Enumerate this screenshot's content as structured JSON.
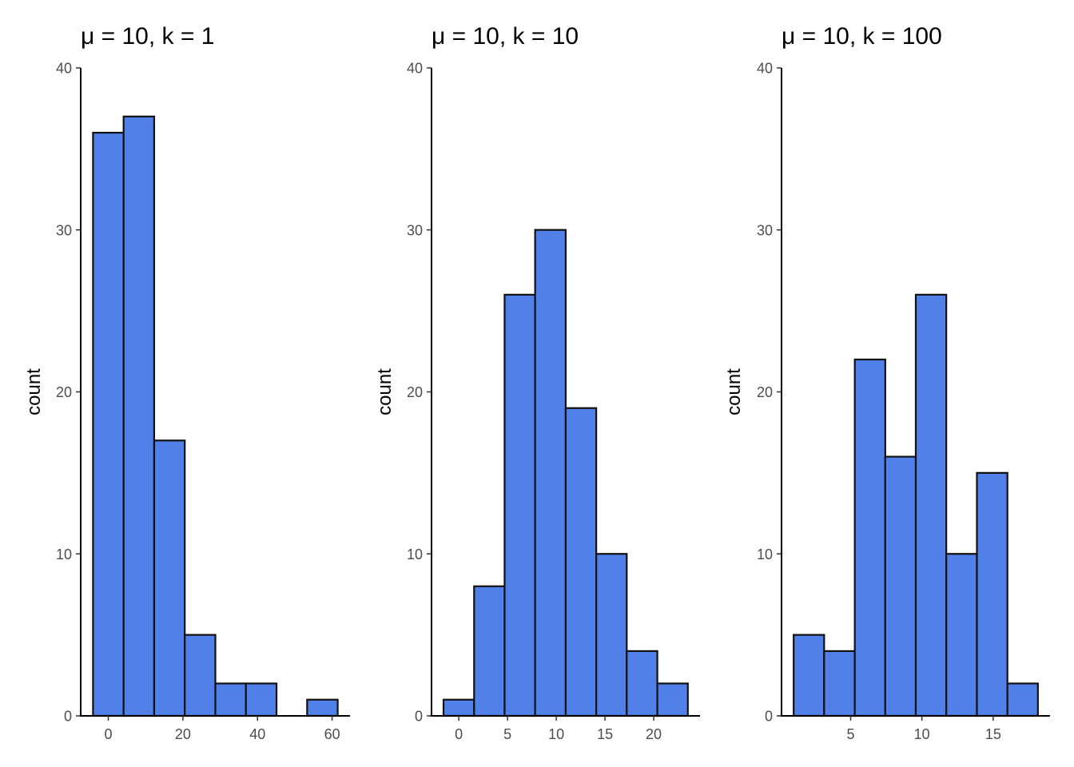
{
  "chart_data": [
    {
      "type": "bar",
      "title": "μ = 10, k = 1",
      "xlabel": "",
      "ylabel": "count",
      "bin_width": 8.2,
      "bins": [
        {
          "x0": -4.1,
          "x1": 4.1,
          "count": 36
        },
        {
          "x0": 4.1,
          "x1": 12.3,
          "count": 37
        },
        {
          "x0": 12.3,
          "x1": 20.5,
          "count": 17
        },
        {
          "x0": 20.5,
          "x1": 28.7,
          "count": 5
        },
        {
          "x0": 28.7,
          "x1": 36.9,
          "count": 2
        },
        {
          "x0": 36.9,
          "x1": 45.1,
          "count": 2
        },
        {
          "x0": 45.1,
          "x1": 53.3,
          "count": 0
        },
        {
          "x0": 53.3,
          "x1": 61.5,
          "count": 1
        }
      ],
      "xlim": [
        -7.4,
        64.8
      ],
      "ylim": [
        0,
        40
      ],
      "xticks": [
        0,
        20,
        40,
        60
      ],
      "yticks": [
        0,
        10,
        20,
        30,
        40
      ],
      "grid": false
    },
    {
      "type": "bar",
      "title": "μ = 10, k = 10",
      "xlabel": "",
      "ylabel": "count",
      "bin_width": 3.13,
      "bins": [
        {
          "x0": -1.57,
          "x1": 1.57,
          "count": 1
        },
        {
          "x0": 1.57,
          "x1": 4.7,
          "count": 8
        },
        {
          "x0": 4.7,
          "x1": 7.83,
          "count": 26
        },
        {
          "x0": 7.83,
          "x1": 10.97,
          "count": 30
        },
        {
          "x0": 10.97,
          "x1": 14.1,
          "count": 19
        },
        {
          "x0": 14.1,
          "x1": 17.23,
          "count": 10
        },
        {
          "x0": 17.23,
          "x1": 20.37,
          "count": 4
        },
        {
          "x0": 20.37,
          "x1": 23.5,
          "count": 2
        }
      ],
      "xlim": [
        -2.8,
        24.75
      ],
      "ylim": [
        0,
        40
      ],
      "xticks": [
        0,
        5,
        10,
        15,
        20
      ],
      "yticks": [
        0,
        10,
        20,
        30,
        40
      ],
      "grid": false
    },
    {
      "type": "bar",
      "title": "μ = 10, k = 100",
      "xlabel": "",
      "ylabel": "count",
      "bin_width": 2.14,
      "bins": [
        {
          "x0": 1.0,
          "x1": 3.14,
          "count": 5
        },
        {
          "x0": 3.14,
          "x1": 5.29,
          "count": 4
        },
        {
          "x0": 5.29,
          "x1": 7.43,
          "count": 22
        },
        {
          "x0": 7.43,
          "x1": 9.57,
          "count": 16
        },
        {
          "x0": 9.57,
          "x1": 11.71,
          "count": 26
        },
        {
          "x0": 11.71,
          "x1": 13.86,
          "count": 10
        },
        {
          "x0": 13.86,
          "x1": 16.0,
          "count": 15
        },
        {
          "x0": 16.0,
          "x1": 18.14,
          "count": 2
        }
      ],
      "xlim": [
        0.15,
        18.99
      ],
      "ylim": [
        0,
        40
      ],
      "xticks": [
        5,
        10,
        15
      ],
      "yticks": [
        0,
        10,
        20,
        30,
        40
      ],
      "grid": false
    }
  ]
}
